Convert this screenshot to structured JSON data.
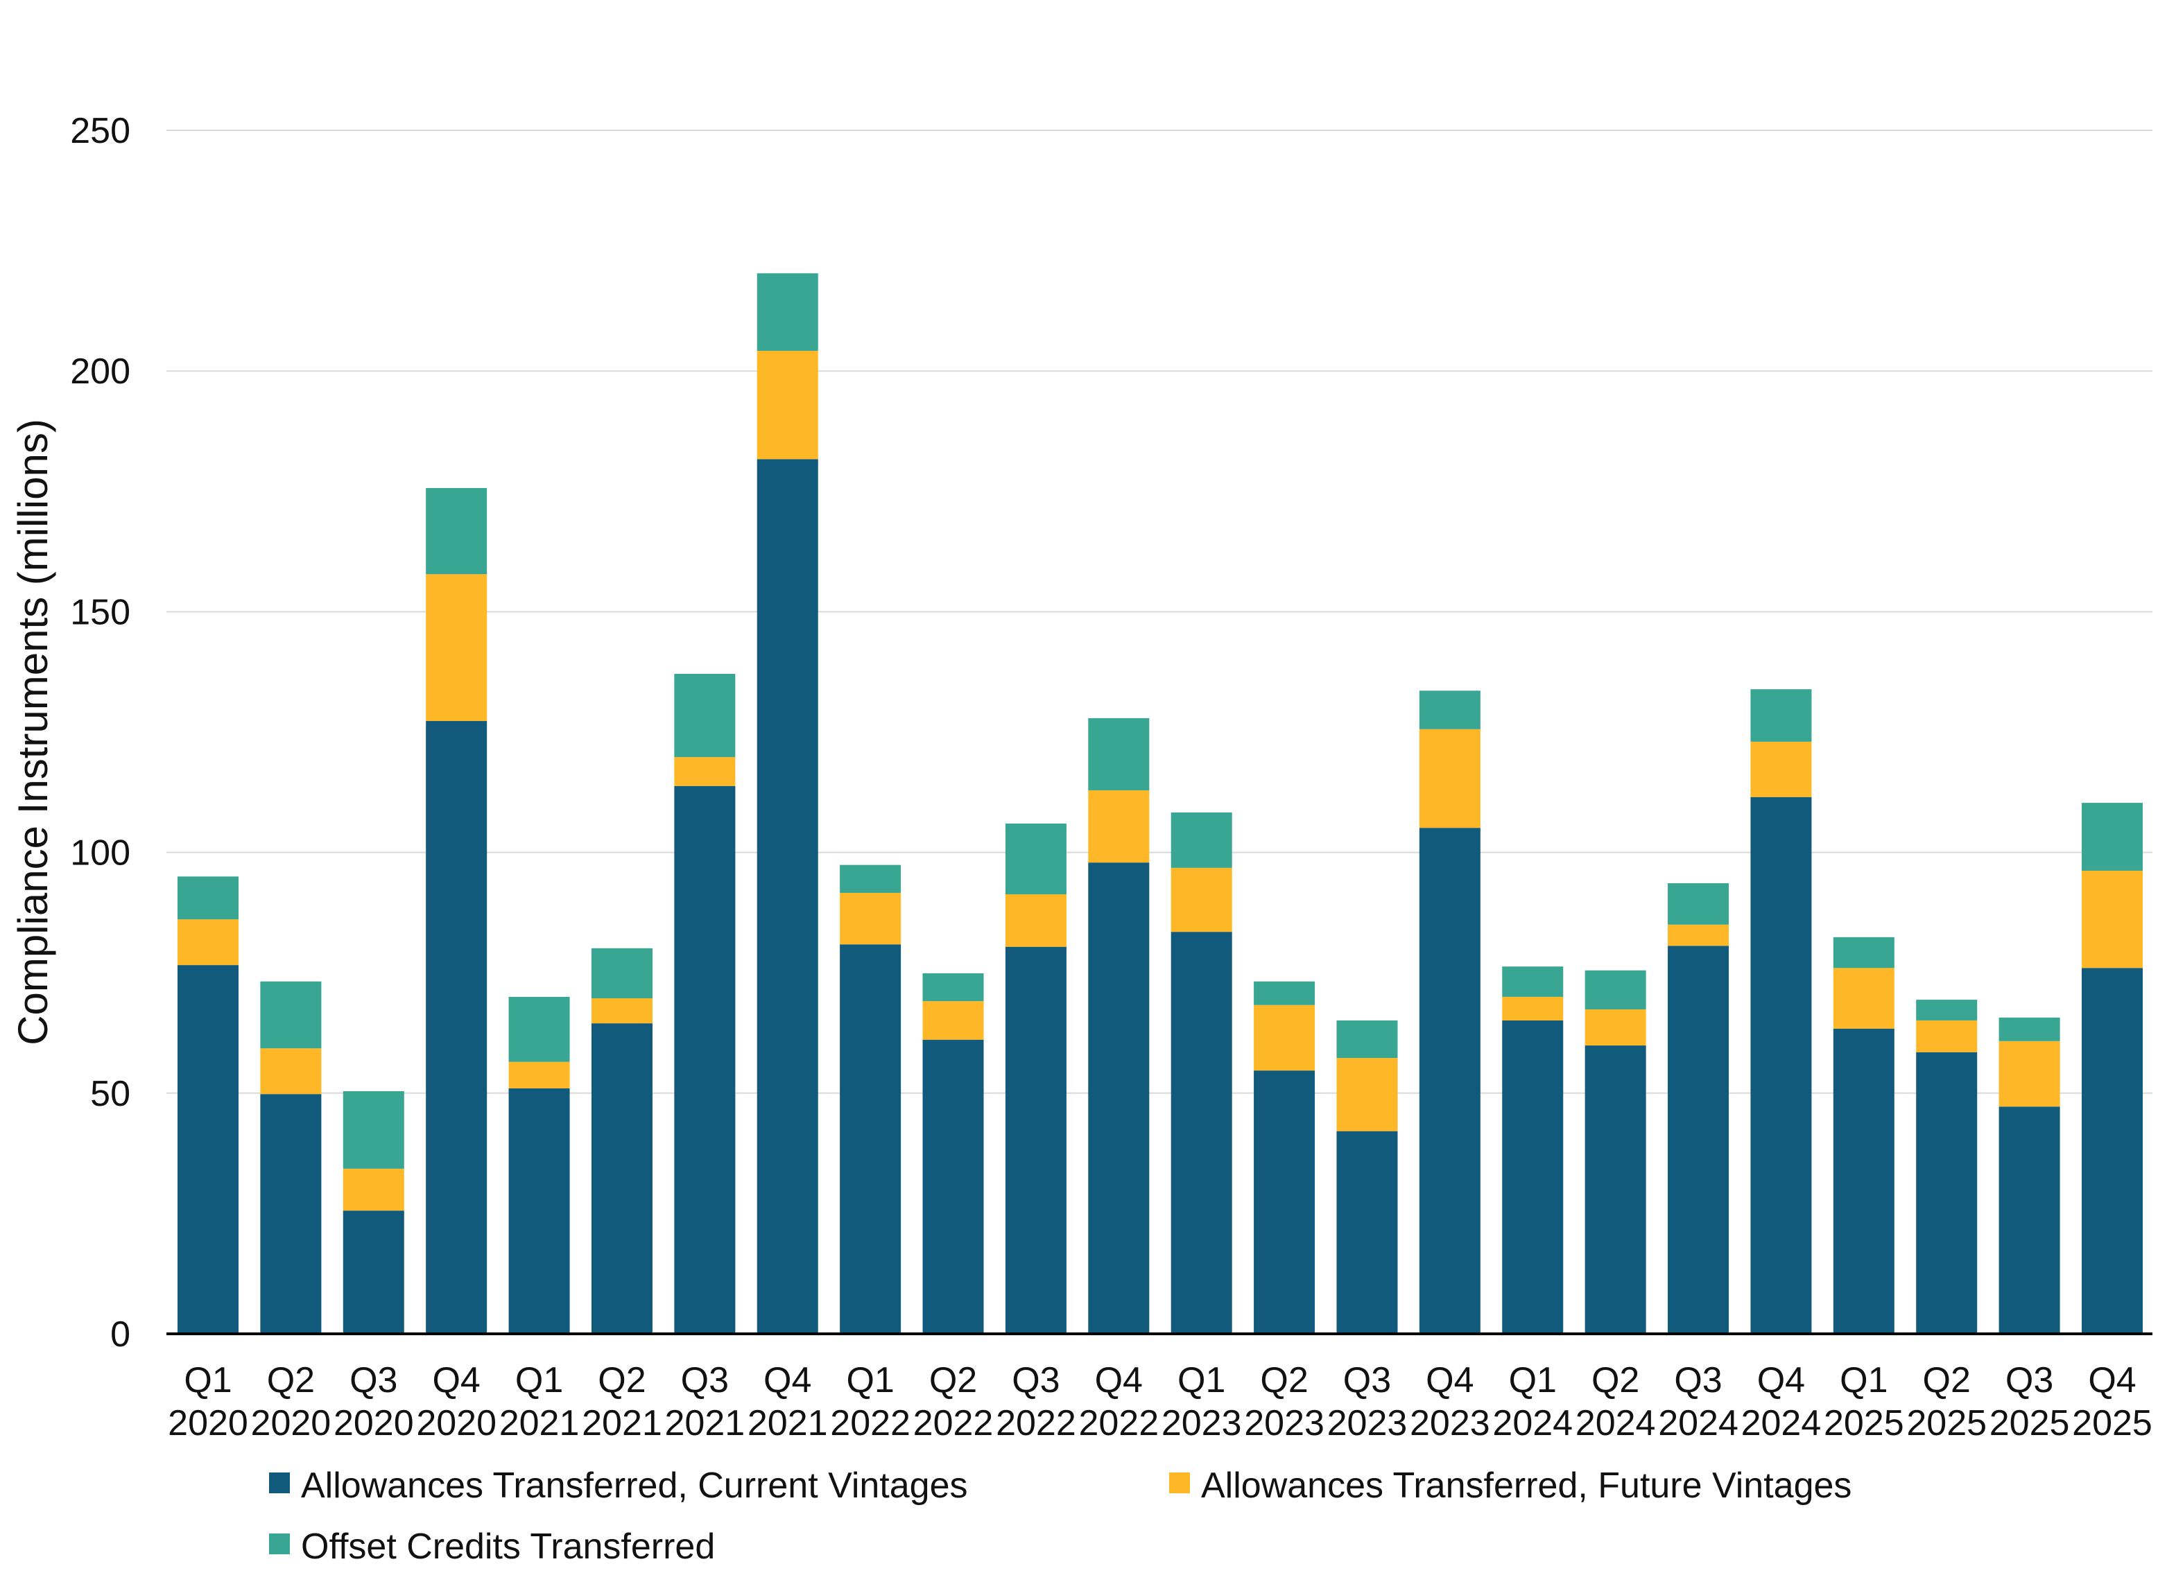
{
  "chart_data": {
    "type": "bar",
    "stacked": true,
    "title": "",
    "xlabel": "",
    "ylabel": "Compliance Instruments (millions)",
    "ylim": [
      0,
      250
    ],
    "yticks": [
      0,
      50,
      100,
      150,
      200,
      250
    ],
    "grid": true,
    "legend_position": "bottom",
    "categories": [
      [
        "Q1",
        "2020"
      ],
      [
        "Q2",
        "2020"
      ],
      [
        "Q3",
        "2020"
      ],
      [
        "Q4",
        "2020"
      ],
      [
        "Q1",
        "2021"
      ],
      [
        "Q2",
        "2021"
      ],
      [
        "Q3",
        "2021"
      ],
      [
        "Q4",
        "2021"
      ],
      [
        "Q1",
        "2022"
      ],
      [
        "Q2",
        "2022"
      ],
      [
        "Q3",
        "2022"
      ],
      [
        "Q4",
        "2022"
      ],
      [
        "Q1",
        "2023"
      ],
      [
        "Q2",
        "2023"
      ],
      [
        "Q3",
        "2023"
      ],
      [
        "Q4",
        "2023"
      ],
      [
        "Q1",
        "2024"
      ],
      [
        "Q2",
        "2024"
      ],
      [
        "Q3",
        "2024"
      ],
      [
        "Q4",
        "2024"
      ],
      [
        "Q1",
        "2025"
      ],
      [
        "Q2",
        "2025"
      ],
      [
        "Q3",
        "2025"
      ],
      [
        "Q4",
        "2025"
      ]
    ],
    "series": [
      {
        "name": "Allowances Transferred, Current Vintages",
        "color": "#115a7c",
        "values": [
          76.6,
          49.8,
          25.6,
          127.3,
          51.0,
          64.5,
          113.8,
          181.7,
          80.9,
          61.1,
          80.4,
          97.9,
          83.5,
          54.7,
          42.1,
          105.1,
          65.1,
          59.9,
          80.6,
          111.5,
          63.4,
          58.5,
          47.2,
          76.0
        ]
      },
      {
        "name": "Allowances Transferred, Future Vintages",
        "color": "#fdb727",
        "values": [
          9.5,
          9.5,
          8.7,
          30.5,
          5.5,
          5.2,
          6.0,
          22.5,
          10.7,
          8.0,
          10.9,
          15.0,
          13.3,
          13.6,
          15.2,
          20.5,
          4.9,
          7.5,
          4.4,
          11.5,
          12.6,
          6.6,
          13.6,
          20.2
        ]
      },
      {
        "name": "Offset Credits Transferred",
        "color": "#39a593",
        "values": [
          8.9,
          13.9,
          16.1,
          17.9,
          13.5,
          10.4,
          17.3,
          16.1,
          5.8,
          5.8,
          14.7,
          15.0,
          11.5,
          4.9,
          7.8,
          8.0,
          6.3,
          8.1,
          8.6,
          10.9,
          6.4,
          4.3,
          4.9,
          14.1
        ]
      }
    ]
  }
}
